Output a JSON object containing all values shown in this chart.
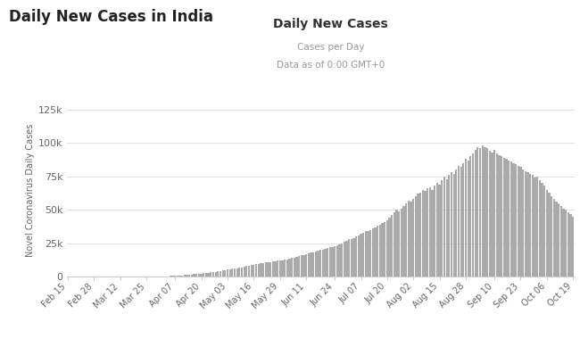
{
  "title_main": "Daily New Cases in India",
  "title_chart": "Daily New Cases",
  "subtitle1": "Cases per Day",
  "subtitle2": "Data as of 0:00 GMT+0",
  "ylabel": "Novel Coronavirus Daily Cases",
  "bar_color": "#aaaaaa",
  "background_color": "#ffffff",
  "ylim": [
    0,
    130000
  ],
  "yticks": [
    0,
    25000,
    50000,
    75000,
    100000,
    125000
  ],
  "xtick_labels": [
    "Feb 15",
    "Feb 28",
    "Mar 12",
    "Mar 25",
    "Apr 07",
    "Apr 20",
    "May 03",
    "May 16",
    "May 29",
    "Jun 11",
    "Jun 24",
    "Jul 07",
    "Jul 20",
    "Aug 02",
    "Aug 15",
    "Aug 28",
    "Sep 10",
    "Sep 23",
    "Oct 06",
    "Oct 19"
  ],
  "daily_cases": [
    1,
    1,
    1,
    2,
    2,
    3,
    3,
    5,
    5,
    6,
    7,
    8,
    10,
    11,
    12,
    14,
    15,
    18,
    20,
    24,
    27,
    30,
    35,
    40,
    47,
    55,
    65,
    75,
    90,
    110,
    130,
    150,
    175,
    200,
    230,
    260,
    300,
    340,
    390,
    440,
    500,
    560,
    620,
    700,
    780,
    870,
    970,
    1080,
    1200,
    1330,
    1480,
    1640,
    1800,
    1990,
    2200,
    2400,
    2600,
    2800,
    3000,
    3200,
    3400,
    3600,
    3900,
    4200,
    4500,
    4800,
    5100,
    5400,
    5700,
    6000,
    6300,
    6600,
    6900,
    7200,
    7600,
    8000,
    8400,
    8800,
    9200,
    9600,
    9900,
    10200,
    10500,
    10800,
    11000,
    11200,
    11500,
    11700,
    12000,
    12200,
    12500,
    12800,
    13000,
    13500,
    14000,
    14500,
    15000,
    15500,
    16000,
    16500,
    17000,
    17500,
    18000,
    18500,
    19000,
    19500,
    20000,
    20500,
    21000,
    21500,
    22000,
    22500,
    23000,
    23500,
    24000,
    25000,
    26000,
    27000,
    28000,
    28500,
    29000,
    30000,
    31000,
    32000,
    33000,
    34000,
    34500,
    35000,
    36000,
    37000,
    38000,
    39000,
    40000,
    41000,
    42000,
    44000,
    46000,
    48000,
    50000,
    49000,
    51000,
    53000,
    55000,
    57000,
    56000,
    58000,
    60000,
    62000,
    63000,
    65000,
    64000,
    66000,
    67000,
    65000,
    68000,
    70000,
    69000,
    72000,
    75000,
    73000,
    76000,
    78000,
    77000,
    80000,
    83000,
    82000,
    85000,
    88000,
    87000,
    90000,
    92000,
    95000,
    97000,
    96000,
    98000,
    97000,
    96000,
    94000,
    93000,
    95000,
    92000,
    91000,
    90000,
    89000,
    88000,
    87000,
    86000,
    85000,
    84000,
    83000,
    82000,
    80000,
    79000,
    78000,
    77000,
    76000,
    74000,
    75000,
    72000,
    70000,
    68000,
    65000,
    63000,
    60000,
    58000,
    56000,
    55000,
    53000,
    51000,
    50000,
    48000,
    47000,
    45000
  ]
}
